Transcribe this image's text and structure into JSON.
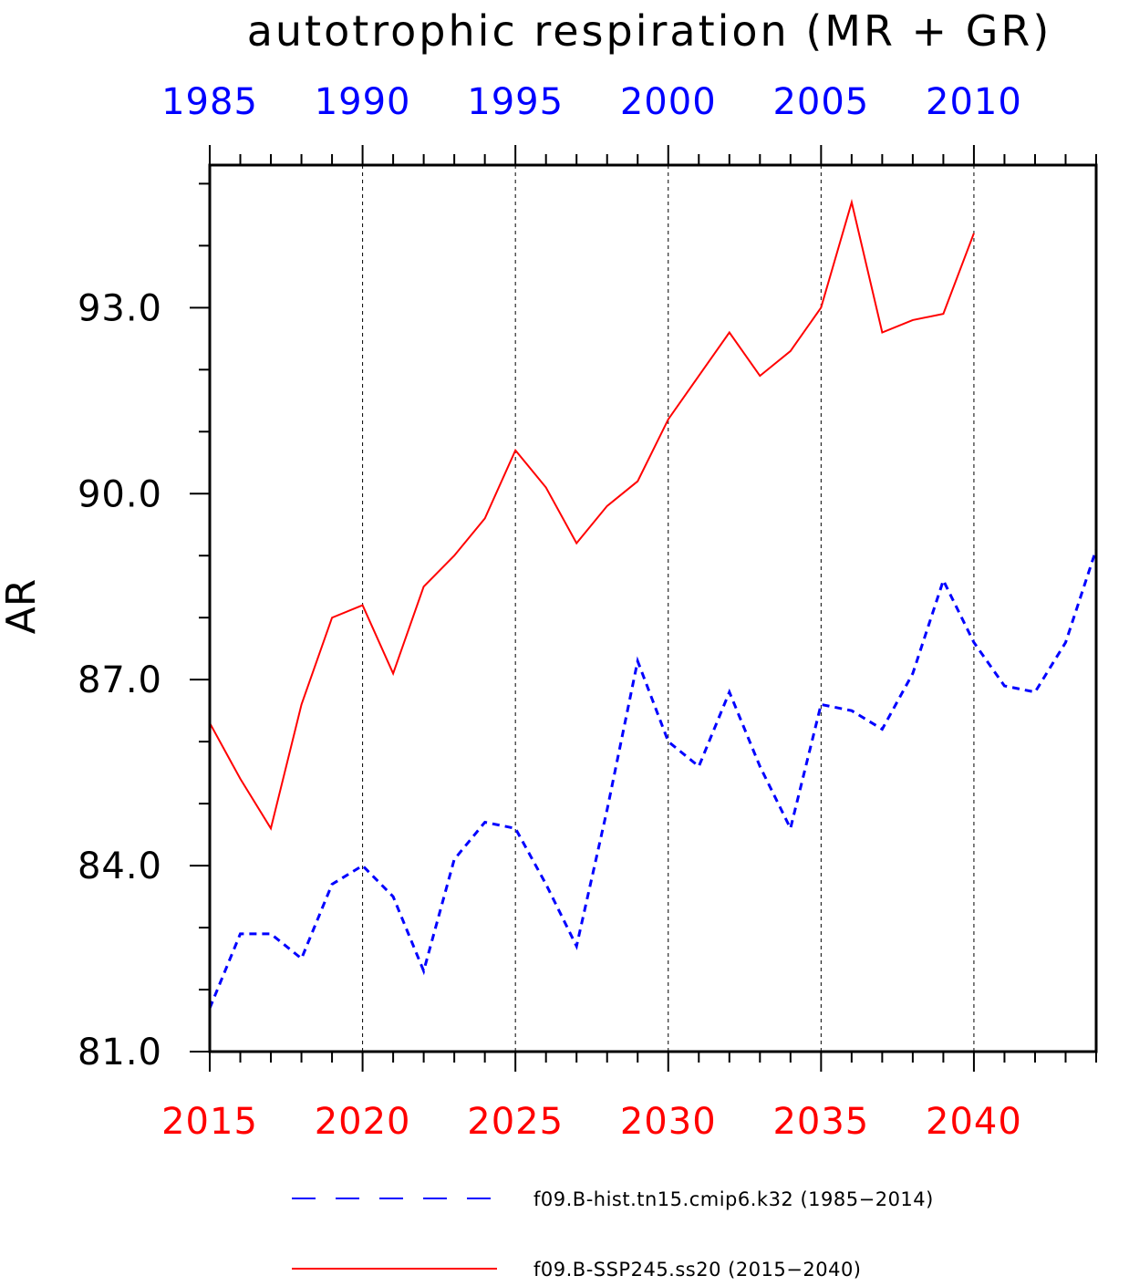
{
  "chart_data": {
    "type": "line",
    "title": "autotrophic respiration (MR + GR)",
    "ylabel": "AR",
    "ylim": [
      81.0,
      95.3
    ],
    "yticks": [
      "81.0",
      "84.0",
      "87.0",
      "90.0",
      "93.0"
    ],
    "ytick_values": [
      81,
      84,
      87,
      90,
      93
    ],
    "y_minor_step": 1.0,
    "grid": "vertical dashed at labeled x ticks",
    "bottom_axis": {
      "color": "#ff0000",
      "range": [
        2015,
        2044
      ],
      "tick_labels": [
        "2015",
        "2020",
        "2025",
        "2030",
        "2035",
        "2040"
      ],
      "tick_values": [
        2015,
        2020,
        2025,
        2030,
        2035,
        2040
      ]
    },
    "top_axis": {
      "color": "#0000ff",
      "range": [
        1985,
        2014
      ],
      "tick_labels": [
        "1985",
        "1990",
        "1995",
        "2000",
        "2005",
        "2010"
      ],
      "tick_values": [
        1985,
        1990,
        1995,
        2000,
        2005,
        2010
      ]
    },
    "series": [
      {
        "name": "f09.B-hist.tn15.cmip6.k32 (1985−2014)",
        "axis": "top",
        "color": "#0000ff",
        "style": "dashed",
        "x": [
          1985,
          1986,
          1987,
          1988,
          1989,
          1990,
          1991,
          1992,
          1993,
          1994,
          1995,
          1996,
          1997,
          1998,
          1999,
          2000,
          2001,
          2002,
          2003,
          2004,
          2005,
          2006,
          2007,
          2008,
          2009,
          2010,
          2011,
          2012,
          2013,
          2014
        ],
        "values": [
          81.7,
          82.9,
          82.9,
          82.5,
          83.7,
          84.0,
          83.5,
          82.3,
          84.1,
          84.7,
          84.6,
          83.7,
          82.7,
          84.9,
          87.3,
          86.0,
          85.6,
          86.8,
          85.6,
          84.6,
          86.6,
          86.5,
          86.2,
          87.1,
          88.6,
          87.6,
          86.9,
          86.8,
          87.6,
          89.1
        ]
      },
      {
        "name": "f09.B-SSP245.ss20 (2015−2040)",
        "axis": "bottom",
        "color": "#ff0000",
        "style": "solid",
        "x": [
          2015,
          2016,
          2017,
          2018,
          2019,
          2020,
          2021,
          2022,
          2023,
          2024,
          2025,
          2026,
          2027,
          2028,
          2029,
          2030,
          2031,
          2032,
          2033,
          2034,
          2035,
          2036,
          2037,
          2038,
          2039,
          2040
        ],
        "values": [
          86.3,
          85.4,
          84.6,
          86.6,
          88.0,
          88.2,
          87.1,
          88.5,
          89.0,
          89.6,
          90.7,
          90.1,
          89.2,
          89.8,
          90.2,
          91.2,
          91.9,
          92.6,
          91.9,
          92.3,
          93.0,
          94.7,
          92.6,
          92.8,
          92.9,
          94.2
        ]
      }
    ],
    "legend": {
      "placement": "bottom",
      "entries": [
        "f09.B-hist.tn15.cmip6.k32 (1985−2014)",
        "f09.B-SSP245.ss20 (2015−2040)"
      ]
    }
  }
}
